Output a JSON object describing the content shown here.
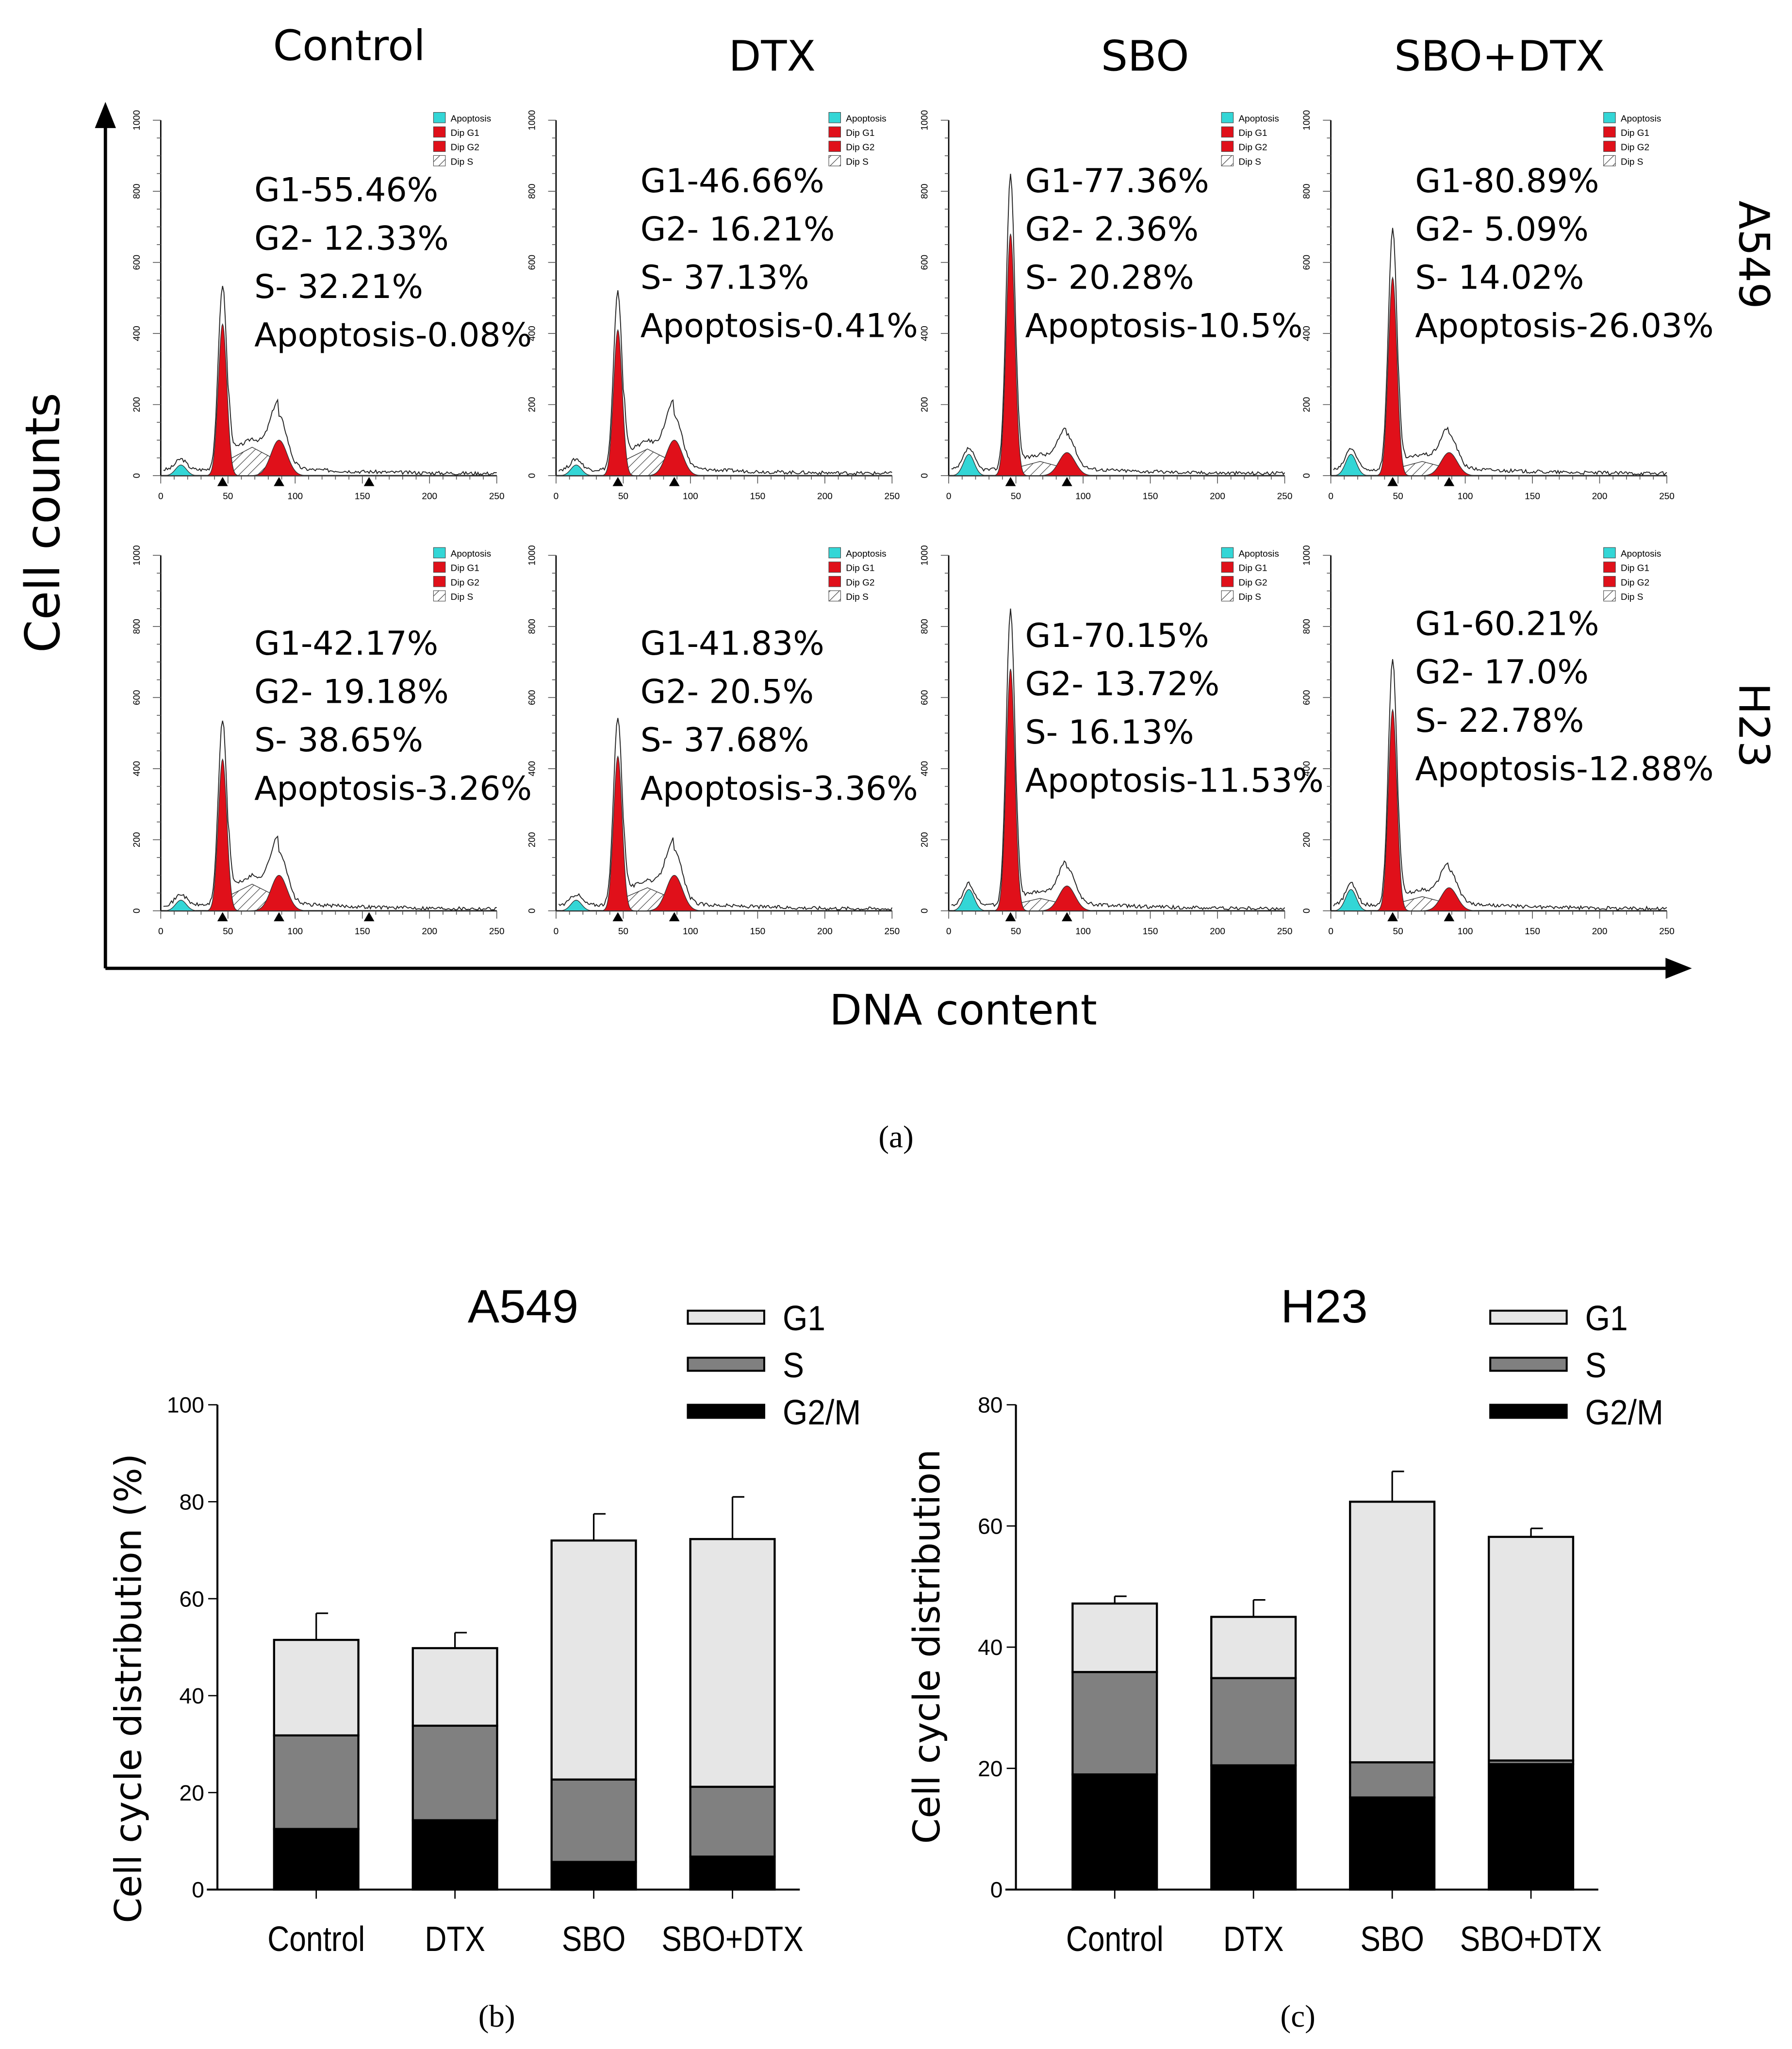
{
  "panel_a": {
    "label": "(a)",
    "y_axis_label": "Cell counts",
    "x_axis_label": "DNA content",
    "columns": [
      "Control",
      "DTX",
      "SBO",
      "SBO+DTX"
    ],
    "rows": [
      "A549",
      "H23"
    ],
    "legend": [
      "Apoptosis",
      "Dip G1",
      "Dip G2",
      "Dip S"
    ],
    "hist_x_ticks": [
      "0",
      "50",
      "100",
      "150",
      "200",
      "250"
    ],
    "hist_y_ticks": [
      "0",
      "200",
      "400",
      "600",
      "800",
      "1000"
    ],
    "colors": {
      "apoptosis": "#33d6d6",
      "g1": "#e0101a",
      "g2": "#e0101a",
      "s": "hatched"
    },
    "histograms": [
      {
        "row": "A549",
        "col": "Control",
        "lines": [
          "G1-55.46%",
          "G2- 12.33%",
          "S- 32.21%",
          "Apoptosis-0.08%"
        ],
        "approx_peaks": {
          "apoptosis": 30,
          "g1": 520,
          "g2": 100,
          "s": 80
        }
      },
      {
        "row": "A549",
        "col": "DTX",
        "lines": [
          "G1-46.66%",
          "G2- 16.21%",
          "S- 37.13%",
          "Apoptosis-0.41%"
        ],
        "approx_peaks": {
          "apoptosis": 30,
          "g1": 500,
          "g2": 100,
          "s": 75
        }
      },
      {
        "row": "A549",
        "col": "SBO",
        "lines": [
          "G1-77.36%",
          "G2- 2.36%",
          "S- 20.28%",
          "Apoptosis-10.5%"
        ],
        "approx_peaks": {
          "apoptosis": 60,
          "g1": 830,
          "g2": 65,
          "s": 40
        }
      },
      {
        "row": "A549",
        "col": "SBO+DTX",
        "lines": [
          "G1-80.89%",
          "G2- 5.09%",
          "S- 14.02%",
          "Apoptosis-26.03%"
        ],
        "approx_peaks": {
          "apoptosis": 60,
          "g1": 680,
          "g2": 65,
          "s": 40
        }
      },
      {
        "row": "H23",
        "col": "Control",
        "lines": [
          "G1-42.17%",
          "G2- 19.18%",
          "S- 38.65%",
          "Apoptosis-3.26%"
        ],
        "approx_peaks": {
          "apoptosis": 30,
          "g1": 520,
          "g2": 100,
          "s": 75
        }
      },
      {
        "row": "H23",
        "col": "DTX",
        "lines": [
          "G1-41.83%",
          "G2- 20.5%",
          "S- 37.68%",
          "Apoptosis-3.36%"
        ],
        "approx_peaks": {
          "apoptosis": 30,
          "g1": 530,
          "g2": 100,
          "s": 65
        }
      },
      {
        "row": "H23",
        "col": "SBO",
        "lines": [
          "G1-70.15%",
          "G2- 13.72%",
          "S- 16.13%",
          "Apoptosis-11.53%"
        ],
        "approx_peaks": {
          "apoptosis": 60,
          "g1": 830,
          "g2": 70,
          "s": 35
        }
      },
      {
        "row": "H23",
        "col": "SBO+DTX",
        "lines": [
          "G1-60.21%",
          "G2- 17.0%",
          "S- 22.78%",
          "Apoptosis-12.88%"
        ],
        "approx_peaks": {
          "apoptosis": 60,
          "g1": 690,
          "g2": 65,
          "s": 40
        }
      }
    ]
  },
  "chart_data": [
    {
      "type": "bar",
      "stacked": true,
      "panel_label": "(b)",
      "title": "A549",
      "xlabel": "",
      "ylabel": "Cell cycle distribution (%)",
      "ylim": [
        0,
        100
      ],
      "y_ticks": [
        "0",
        "20",
        "40",
        "60",
        "80",
        "100"
      ],
      "categories": [
        "Control",
        "DTX",
        "SBO",
        "SBO+DTX"
      ],
      "legend": "top-right",
      "series": [
        {
          "name": "G2/M",
          "color": "#000000",
          "values": [
            12.5,
            14.3,
            5.7,
            6.8
          ],
          "error_top": [
            12.5,
            16.2,
            8.5,
            8.0
          ]
        },
        {
          "name": "S",
          "color": "#808080",
          "values": [
            19.3,
            19.5,
            17.0,
            14.4
          ],
          "error_top": [
            32.2,
            37.2,
            25.3,
            28.5
          ]
        },
        {
          "name": "G1",
          "color": "#e6e6e6",
          "values": [
            19.7,
            16.0,
            49.3,
            51.1
          ],
          "error_top": [
            57.0,
            53.0,
            77.5,
            81.0
          ]
        }
      ]
    },
    {
      "type": "bar",
      "stacked": true,
      "panel_label": "(c)",
      "title": "H23",
      "xlabel": "",
      "ylabel": "Cell cycle distribution",
      "ylim": [
        0,
        80
      ],
      "y_ticks": [
        "0",
        "20",
        "40",
        "60",
        "80"
      ],
      "categories": [
        "Control",
        "DTX",
        "SBO",
        "SBO+DTX"
      ],
      "legend": "top-right",
      "series": [
        {
          "name": "G2/M",
          "color": "#000000",
          "values": [
            19.0,
            20.5,
            15.2,
            20.7
          ],
          "error_top": [
            23.6,
            23.5,
            18.0,
            23.5
          ]
        },
        {
          "name": "S",
          "color": "#808080",
          "values": [
            16.9,
            14.4,
            5.8,
            0.6
          ],
          "error_top": [
            39.6,
            37.6,
            24.3,
            23.8
          ]
        },
        {
          "name": "G1",
          "color": "#e6e6e6",
          "values": [
            11.3,
            10.1,
            43.0,
            36.9
          ],
          "error_top": [
            48.4,
            47.8,
            69.0,
            59.6
          ]
        }
      ]
    }
  ]
}
